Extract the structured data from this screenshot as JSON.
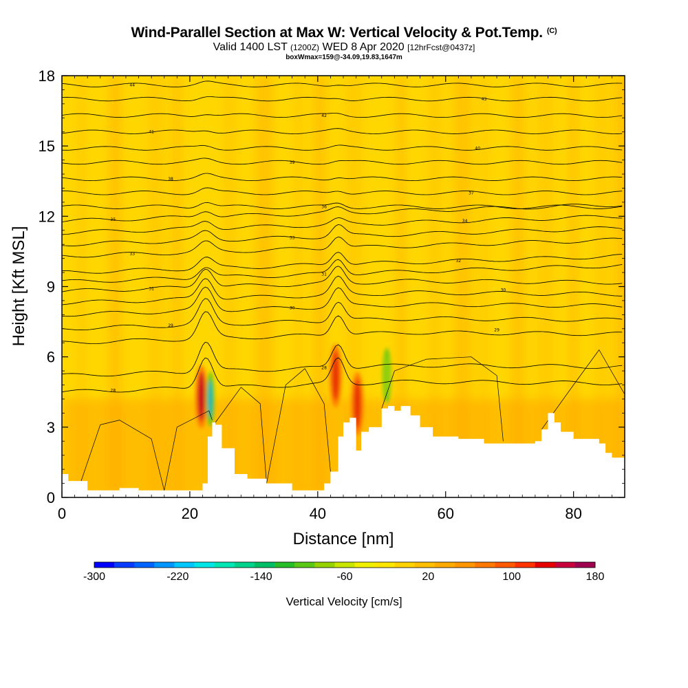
{
  "header": {
    "title": "Wind-Parallel Section at Max W: Vertical Velocity & Pot.Temp.",
    "title_suffix": "(C)",
    "subtitle_a": "Valid 1400 LST",
    "subtitle_b": "(1200Z)",
    "subtitle_c": "WED 8 Apr 2020",
    "subtitle_d": "[12hrFcst@0437z]",
    "subtitle2": "boxWmax=159@-34.09,19.83,1647m"
  },
  "chart_data": {
    "type": "contour-section",
    "xlabel": "Distance [nm]",
    "ylabel": "Height [Kft MSL]",
    "xlim": [
      0,
      88
    ],
    "ylim": [
      0,
      18
    ],
    "xticks": [
      "0",
      "20",
      "40",
      "60",
      "80"
    ],
    "yticks": [
      "0",
      "3",
      "6",
      "9",
      "12",
      "15",
      "18"
    ],
    "xtick_values": [
      0,
      20,
      40,
      60,
      80
    ],
    "ytick_values": [
      0,
      3,
      6,
      9,
      12,
      15,
      18
    ],
    "terrain_x": [
      0,
      1,
      4,
      6,
      9,
      12,
      16,
      20,
      21,
      22,
      22.8,
      23.5,
      24,
      25,
      27,
      29,
      32,
      36,
      40,
      41,
      42,
      43.2,
      44,
      45,
      46,
      46.8,
      48,
      50,
      51,
      52,
      53,
      54.5,
      56,
      58,
      62,
      66,
      70,
      74,
      75,
      76,
      77,
      78,
      80,
      82,
      84,
      85,
      86,
      88
    ],
    "terrain_y": [
      1.0,
      0.7,
      0.3,
      0.3,
      0.4,
      0.3,
      0.3,
      0.3,
      0.3,
      0.6,
      2.6,
      3.2,
      3.1,
      2.1,
      1.0,
      0.8,
      0.6,
      0.3,
      0.3,
      0.6,
      1.1,
      2.6,
      3.2,
      3.4,
      2.0,
      2.8,
      3.0,
      3.8,
      3.9,
      3.7,
      3.9,
      3.5,
      3.0,
      2.6,
      2.5,
      2.3,
      2.3,
      2.4,
      2.9,
      3.6,
      3.2,
      2.8,
      2.5,
      2.5,
      2.3,
      1.9,
      1.7,
      2.0
    ],
    "theta_contours": [
      {
        "label": "28",
        "base_height": 4.5
      },
      {
        "label": "28",
        "base_height": 5.2
      },
      {
        "label": "29",
        "base_height": 6.6
      },
      {
        "label": "29",
        "base_height": 7.2
      },
      {
        "label": "30",
        "base_height": 7.8
      },
      {
        "label": "30",
        "base_height": 8.3
      },
      {
        "label": "31",
        "base_height": 8.8
      },
      {
        "label": "31",
        "base_height": 9.2
      },
      {
        "label": "32",
        "base_height": 9.6
      },
      {
        "label": "33",
        "base_height": 10.3
      },
      {
        "label": "33",
        "base_height": 10.8
      },
      {
        "label": "34",
        "base_height": 11.3
      },
      {
        "label": "35",
        "base_height": 11.8
      },
      {
        "label": "36",
        "base_height": 12.4
      },
      {
        "label": "37",
        "base_height": 13.0
      },
      {
        "label": "38",
        "base_height": 13.6
      },
      {
        "label": "39",
        "base_height": 14.3
      },
      {
        "label": "40",
        "base_height": 14.9
      },
      {
        "label": "41",
        "base_height": 15.6
      },
      {
        "label": "42",
        "base_height": 16.3
      },
      {
        "label": "43",
        "base_height": 17.0
      },
      {
        "label": "44",
        "base_height": 17.6
      }
    ],
    "updraft_cores": [
      {
        "x": 21.8,
        "y": 4.3,
        "value": 159
      },
      {
        "x": 42.8,
        "y": 5.2,
        "value": 110
      },
      {
        "x": 46.2,
        "y": 4.0,
        "value": 100
      }
    ],
    "downdraft_cores": [
      {
        "x": 23.2,
        "y": 4.2,
        "value": -200
      },
      {
        "x": 50.8,
        "y": 5.2,
        "value": -60
      }
    ],
    "colorbar": {
      "title": "Vertical Velocity [cm/s]",
      "min": -300,
      "max": 180,
      "tick_labels": [
        "-300",
        "-220",
        "-140",
        "-60",
        "20",
        "100",
        "180"
      ],
      "colors": [
        "#0000ff",
        "#0a3cff",
        "#0064ff",
        "#0096ff",
        "#00c8ff",
        "#00e6e6",
        "#00e6b4",
        "#00d28c",
        "#00be64",
        "#28be28",
        "#5ac814",
        "#96d200",
        "#c8e600",
        "#f0f000",
        "#ffe600",
        "#ffd200",
        "#ffbe00",
        "#ffaa00",
        "#ff9600",
        "#ff7800",
        "#ff5a00",
        "#ff3200",
        "#e60000",
        "#c8003c",
        "#a00050"
      ]
    }
  }
}
